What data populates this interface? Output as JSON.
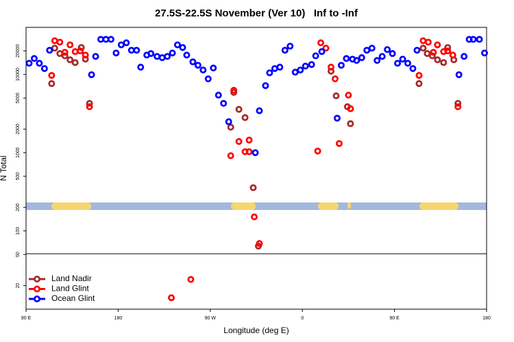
{
  "chart_data": {
    "type": "scatter",
    "title": "27.5S-22.5S November (Ver 10)   Inf to -Inf",
    "xlabel": "Longitude (deg E)",
    "ylabel": "N Total",
    "xlim": [
      90,
      540
    ],
    "xticks": [
      {
        "value": 90,
        "label": "90 E"
      },
      {
        "value": 180,
        "label": "180"
      },
      {
        "value": 270,
        "label": "90 W"
      },
      {
        "value": 360,
        "label": "0"
      },
      {
        "value": 450,
        "label": "90 E"
      },
      {
        "value": 540,
        "label": "180"
      }
    ],
    "ylim": [
      10,
      40000
    ],
    "log_y": true,
    "yticks": [
      20,
      50,
      100,
      200,
      500,
      1000,
      2000,
      5000,
      10000,
      20000
    ],
    "legend": "lower left",
    "series": [
      {
        "name": "Land Nadir",
        "color": "#a52a2a",
        "x": [
          115,
          118,
          123,
          128,
          133,
          138,
          144,
          148,
          152,
          290,
          293,
          298,
          304,
          312,
          317,
          388,
          393,
          404,
          407,
          474,
          478,
          482,
          487,
          492,
          498,
          502,
          508,
          512
        ],
        "values": [
          7650,
          21700,
          18500,
          17300,
          15400,
          14200,
          22100,
          15700,
          4270,
          2120,
          5900,
          3580,
          2810,
          357,
          64,
          11000,
          5330,
          3870,
          2350,
          7650,
          21700,
          18500,
          17300,
          15400,
          14200,
          22100,
          15400,
          4270
        ]
      },
      {
        "name": "Land Glint",
        "color": "#ff0000",
        "x": [
          115,
          118,
          123,
          128,
          133,
          138,
          143,
          148,
          152,
          232,
          251,
          290,
          293,
          298,
          304,
          308,
          308,
          313,
          318,
          375,
          378,
          383,
          388,
          392,
          396,
          405,
          407,
          474,
          478,
          483,
          488,
          492,
          498,
          502,
          507,
          512
        ],
        "values": [
          9730,
          27000,
          25900,
          19200,
          23900,
          19600,
          20000,
          17700,
          3870,
          14,
          24,
          916,
          6270,
          1390,
          1030,
          1030,
          1450,
          151,
          69,
          1050,
          25400,
          21700,
          12400,
          8790,
          1310,
          5440,
          3650,
          9730,
          27000,
          25900,
          19200,
          23900,
          19600,
          20000,
          17700,
          3870
        ]
      },
      {
        "name": "Ocean Glint",
        "color": "#0000ff",
        "x": [
          93,
          98,
          103,
          108,
          113,
          154,
          158,
          163,
          168,
          173,
          178,
          183,
          188,
          193,
          198,
          202,
          208,
          212,
          218,
          223,
          228,
          233,
          238,
          243,
          247,
          253,
          258,
          263,
          268,
          273,
          278,
          283,
          288,
          314,
          318,
          324,
          328,
          333,
          338,
          343,
          348,
          353,
          358,
          363,
          369,
          373,
          379,
          394,
          398,
          403,
          409,
          413,
          418,
          423,
          428,
          433,
          438,
          443,
          448,
          453,
          458,
          463,
          468,
          472,
          513,
          518,
          523,
          527,
          533,
          538
        ],
        "values": [
          13900,
          16000,
          13900,
          11900,
          20400,
          9930,
          17000,
          28100,
          28100,
          28100,
          18800,
          23900,
          25400,
          20400,
          20400,
          12400,
          17700,
          18500,
          17000,
          16400,
          17000,
          18800,
          23900,
          22100,
          17700,
          14500,
          13100,
          11400,
          8790,
          12100,
          5440,
          4270,
          2490,
          1000,
          3440,
          7190,
          10500,
          11900,
          12400,
          20400,
          23000,
          10700,
          11400,
          12800,
          13400,
          17300,
          19600,
          2760,
          13100,
          16000,
          15700,
          15100,
          16400,
          20400,
          21700,
          15100,
          17000,
          20800,
          18500,
          13900,
          15700,
          13900,
          11900,
          20400,
          9930,
          17000,
          28100,
          28100,
          28100,
          18800
        ]
      }
    ]
  }
}
